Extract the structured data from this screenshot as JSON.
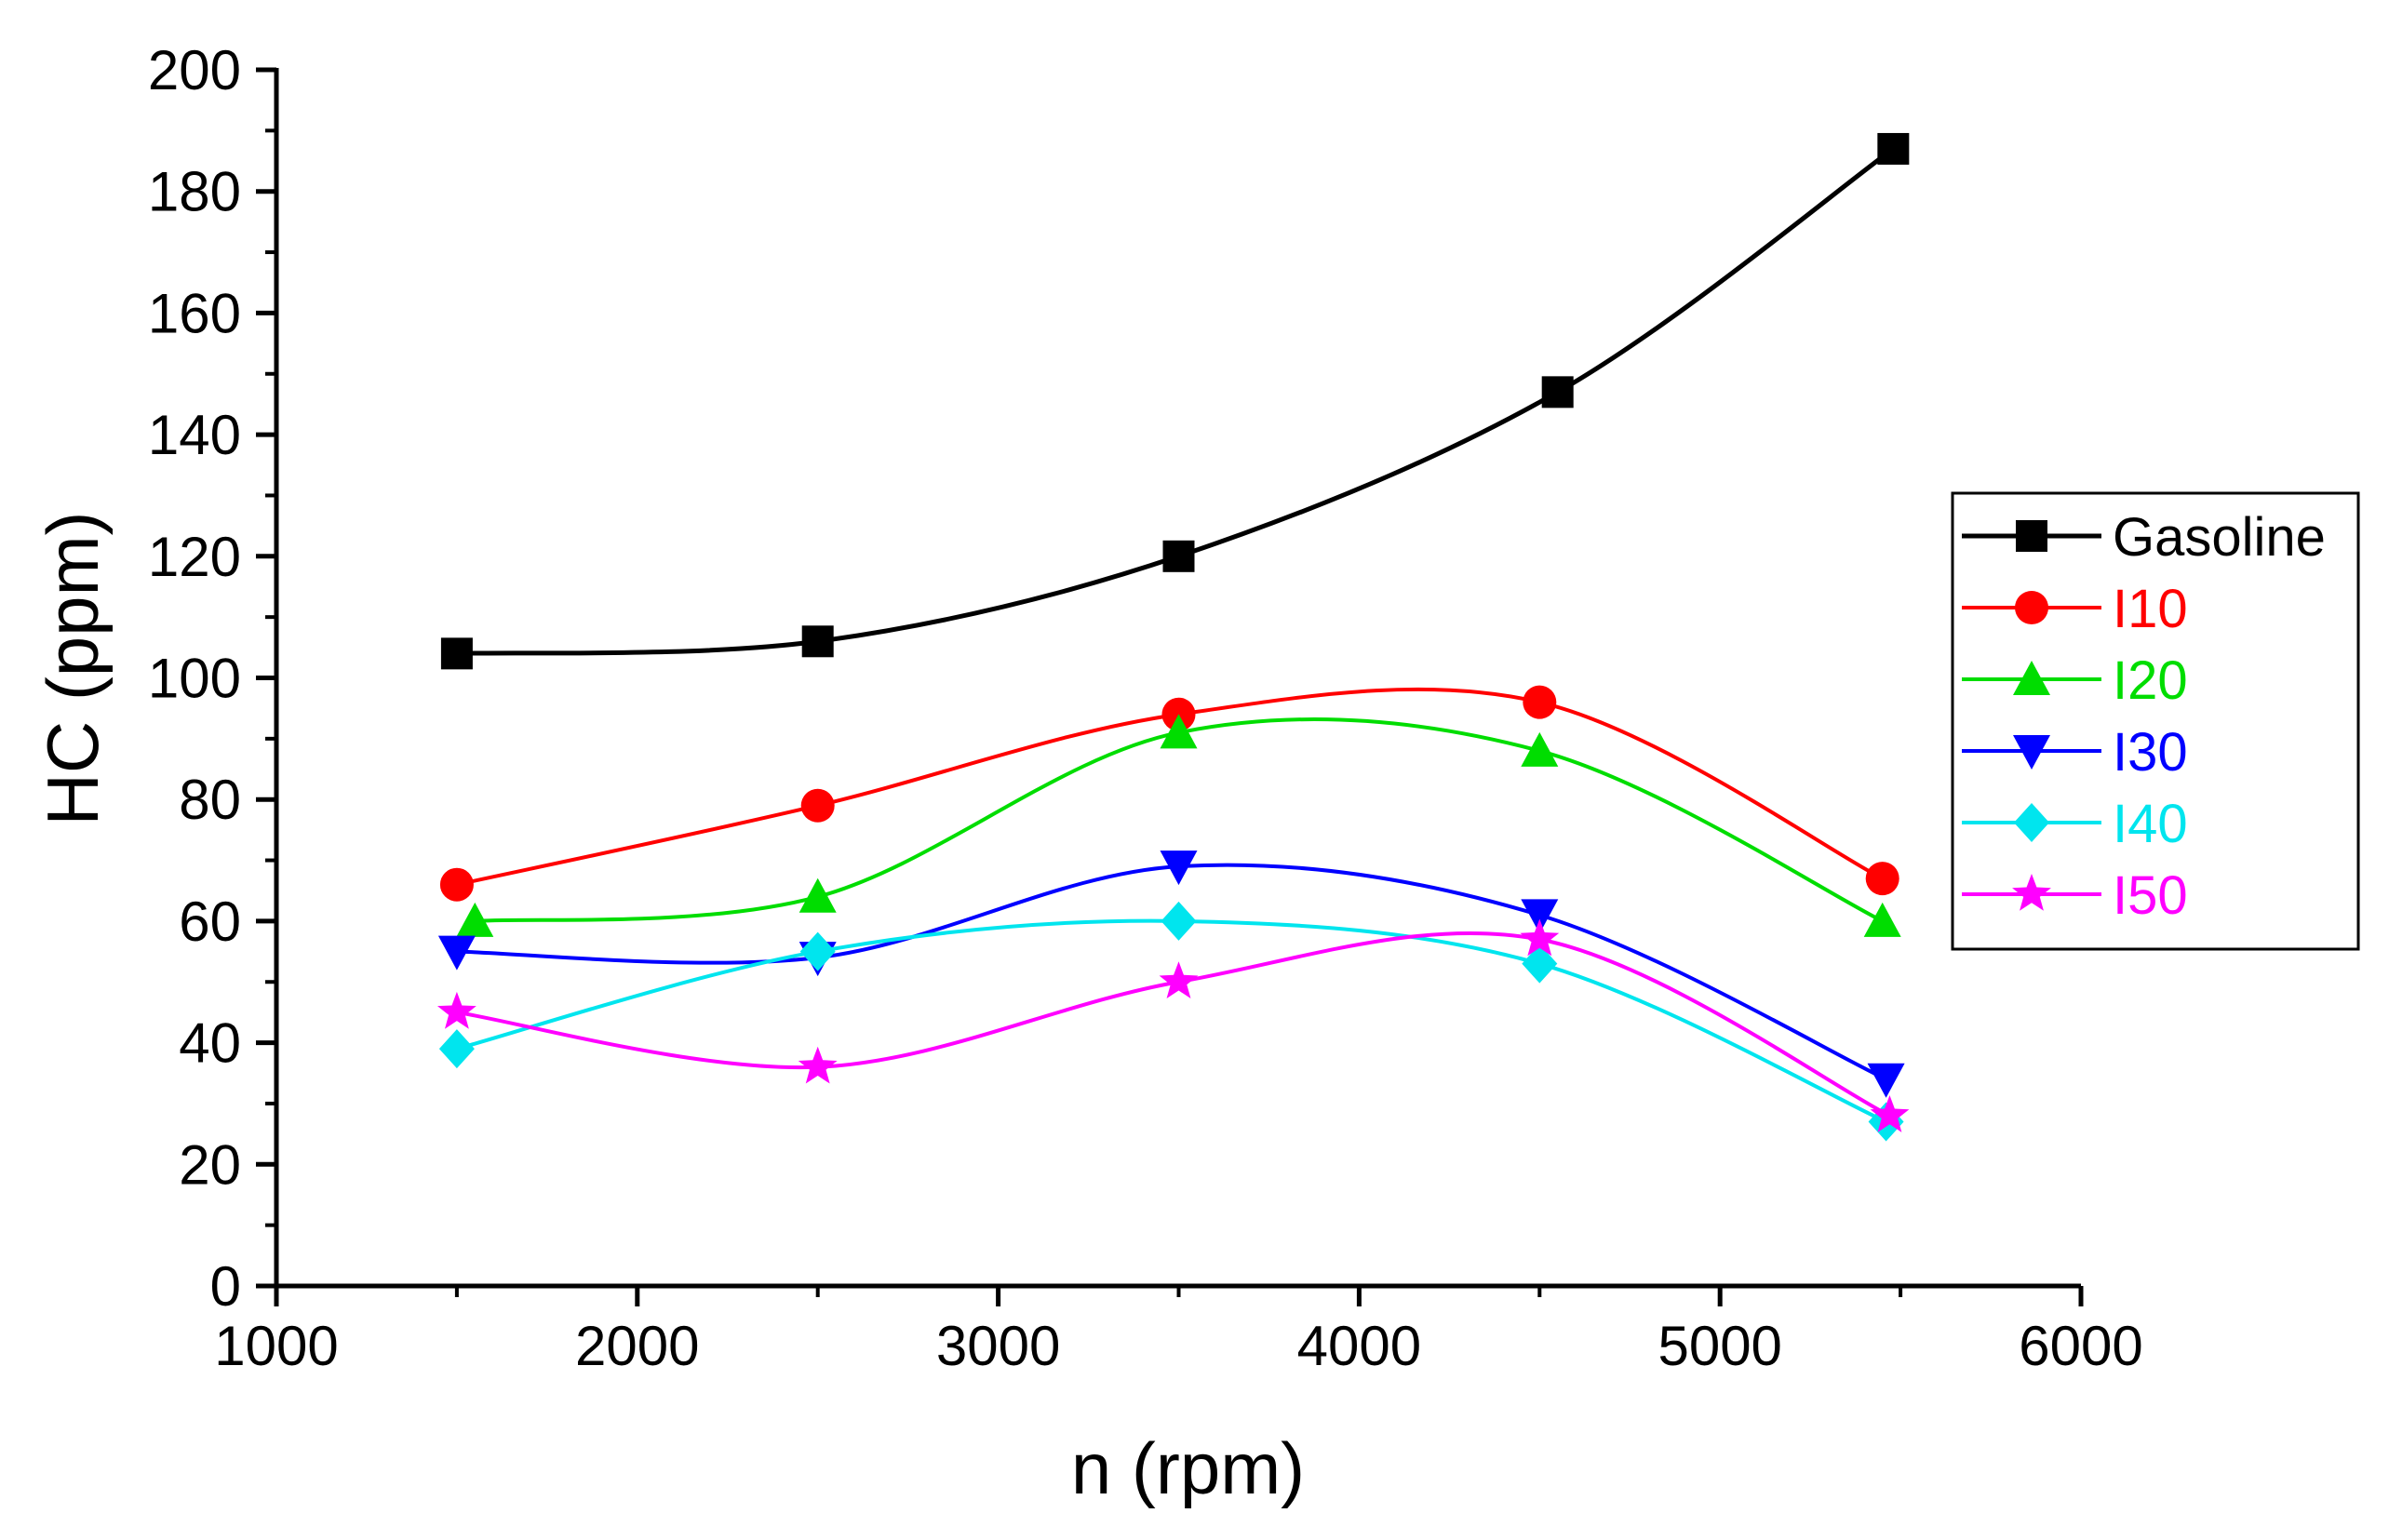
{
  "chart_data": {
    "type": "line",
    "title": "",
    "xlabel": "n (rpm)",
    "ylabel": "HC (ppm)",
    "xlim": [
      1000,
      6000
    ],
    "ylim": [
      0,
      200
    ],
    "xticks": [
      1000,
      2000,
      3000,
      4000,
      5000,
      6000
    ],
    "yticks": [
      0,
      20,
      40,
      60,
      80,
      100,
      120,
      140,
      160,
      180,
      200
    ],
    "grid": false,
    "legend_position": "right",
    "series": [
      {
        "name": "Gasoline",
        "color": "#000000",
        "marker": "square",
        "x": [
          1500,
          2500,
          3500,
          4550,
          5480
        ],
        "y": [
          104,
          106,
          120,
          147,
          187
        ]
      },
      {
        "name": "I10",
        "color": "#ff0000",
        "marker": "circle",
        "x": [
          1500,
          2500,
          3500,
          4500,
          5450
        ],
        "y": [
          66,
          79,
          94,
          96,
          67
        ]
      },
      {
        "name": "I20",
        "color": "#00dd00",
        "marker": "triangle-up",
        "x": [
          1550,
          2500,
          3500,
          4500,
          5450
        ],
        "y": [
          60,
          64,
          91,
          88,
          60
        ]
      },
      {
        "name": "I30",
        "color": "#0000ff",
        "marker": "triangle-down",
        "x": [
          1500,
          2500,
          3500,
          4500,
          5460
        ],
        "y": [
          55,
          54,
          69,
          61,
          34
        ]
      },
      {
        "name": "I40",
        "color": "#00e5ee",
        "marker": "diamond",
        "x": [
          1500,
          2500,
          3500,
          4500,
          5460
        ],
        "y": [
          39,
          55,
          60,
          53,
          27
        ]
      },
      {
        "name": "I50",
        "color": "#ff00ff",
        "marker": "star",
        "x": [
          1500,
          2500,
          3500,
          4500,
          5470
        ],
        "y": [
          45,
          36,
          50,
          57,
          28
        ]
      }
    ]
  }
}
